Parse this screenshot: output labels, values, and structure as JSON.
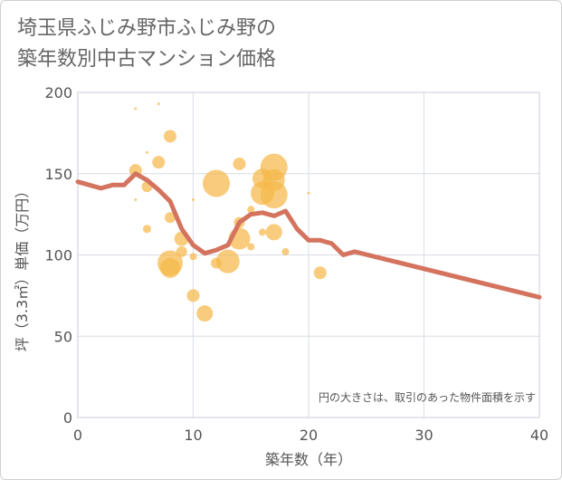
{
  "chart_data": {
    "type": "scatter",
    "title_line1": "埼玉県ふじみ野市ふじみ野の",
    "title_line2": "築年数別中古マンション価格",
    "xlabel": "築年数（年）",
    "ylabel": "坪（3.3㎡）単価（万円）",
    "xlim": [
      0,
      40
    ],
    "ylim": [
      0,
      200
    ],
    "x_ticks": [
      0,
      10,
      20,
      30,
      40
    ],
    "y_ticks": [
      0,
      50,
      100,
      150,
      200
    ],
    "x_tick_labels": [
      "0",
      "10",
      "20",
      "30",
      "40"
    ],
    "y_tick_labels": [
      "0",
      "50",
      "100",
      "150",
      "200"
    ],
    "note": "円の大きさは、取引のあった物件面積を示す",
    "colors": {
      "bubble": "#f5b94a",
      "trend": "#d4735e",
      "grid": "#d8dde6",
      "plot_border": "#c9ced8"
    },
    "bubbles": [
      {
        "x": 5,
        "y": 190,
        "s": 1.5
      },
      {
        "x": 7,
        "y": 193,
        "s": 1.5
      },
      {
        "x": 5,
        "y": 152,
        "s": 7
      },
      {
        "x": 6,
        "y": 163,
        "s": 1.5
      },
      {
        "x": 7,
        "y": 157,
        "s": 7
      },
      {
        "x": 8,
        "y": 173,
        "s": 7
      },
      {
        "x": 6,
        "y": 142,
        "s": 6
      },
      {
        "x": 5,
        "y": 134,
        "s": 1.5
      },
      {
        "x": 6,
        "y": 116,
        "s": 4.5
      },
      {
        "x": 8,
        "y": 123,
        "s": 6
      },
      {
        "x": 9,
        "y": 110,
        "s": 8
      },
      {
        "x": 9,
        "y": 102,
        "s": 6
      },
      {
        "x": 8,
        "y": 95,
        "s": 14
      },
      {
        "x": 8,
        "y": 92,
        "s": 11
      },
      {
        "x": 10,
        "y": 99,
        "s": 4
      },
      {
        "x": 10,
        "y": 134,
        "s": 1.5
      },
      {
        "x": 10,
        "y": 75,
        "s": 7
      },
      {
        "x": 11,
        "y": 64,
        "s": 9
      },
      {
        "x": 12,
        "y": 144,
        "s": 15
      },
      {
        "x": 12,
        "y": 95,
        "s": 6
      },
      {
        "x": 13,
        "y": 96,
        "s": 13
      },
      {
        "x": 14,
        "y": 156,
        "s": 7
      },
      {
        "x": 14,
        "y": 120,
        "s": 6
      },
      {
        "x": 14,
        "y": 110,
        "s": 12
      },
      {
        "x": 15,
        "y": 105,
        "s": 4
      },
      {
        "x": 15,
        "y": 128,
        "s": 4
      },
      {
        "x": 16,
        "y": 138,
        "s": 13
      },
      {
        "x": 16,
        "y": 114,
        "s": 4
      },
      {
        "x": 16,
        "y": 147,
        "s": 11
      },
      {
        "x": 17,
        "y": 154,
        "s": 15
      },
      {
        "x": 17,
        "y": 137,
        "s": 15
      },
      {
        "x": 17,
        "y": 146,
        "s": 12
      },
      {
        "x": 17,
        "y": 114,
        "s": 9
      },
      {
        "x": 18,
        "y": 102,
        "s": 4
      },
      {
        "x": 20,
        "y": 138,
        "s": 1.5
      },
      {
        "x": 21,
        "y": 89,
        "s": 7
      }
    ],
    "trend": {
      "x": [
        0,
        2,
        3,
        4,
        5,
        6,
        7,
        8,
        9,
        10,
        11,
        12,
        13,
        14,
        15,
        16,
        17,
        18,
        19,
        20,
        21,
        22,
        23,
        24,
        40
      ],
      "y": [
        145,
        141,
        143,
        143,
        150,
        146,
        140,
        133,
        116,
        106,
        101,
        103,
        106,
        120,
        125,
        126,
        124,
        127,
        116,
        109,
        109,
        107,
        100,
        102,
        74
      ]
    }
  }
}
